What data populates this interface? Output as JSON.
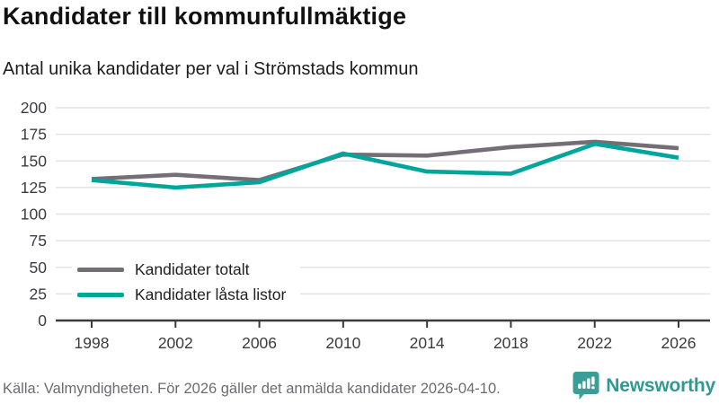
{
  "header": {
    "title": "Kandidater till kommunfullmäktige",
    "subtitle": "Antal unika kandidater per val i Strömstads kommun"
  },
  "chart_data": {
    "type": "line",
    "title": "Kandidater till kommunfullmäktige",
    "subtitle": "Antal unika kandidater per val i Strömstads kommun",
    "categories": [
      "1998",
      "2002",
      "2006",
      "2010",
      "2014",
      "2018",
      "2022",
      "2026"
    ],
    "series": [
      {
        "name": "Kandidater totalt",
        "color": "#746f75",
        "values": [
          133,
          137,
          132,
          156,
          155,
          163,
          168,
          162
        ]
      },
      {
        "name": "Kandidater låsta listor",
        "color": "#00a59b",
        "values": [
          132,
          125,
          130,
          157,
          140,
          138,
          166,
          153
        ]
      }
    ],
    "ylim": [
      0,
      200
    ],
    "yticks": [
      0,
      25,
      50,
      75,
      100,
      125,
      150,
      175,
      200
    ],
    "grid": true,
    "gridline_color": "#e3e3e3",
    "axis_color": "#3a3a3e",
    "tick_label_color": "#3b3b40",
    "legend_position": "inside lower-left"
  },
  "footer": {
    "source": "Källa: Valmyndigheten. För 2026 gäller det anmälda kandidater 2026-04-10."
  },
  "logo": {
    "text": "Newsworthy",
    "icon": "bar-chart-speech-bubble-icon",
    "color": "#2f9a92",
    "icon_color": "#3a9e97"
  }
}
